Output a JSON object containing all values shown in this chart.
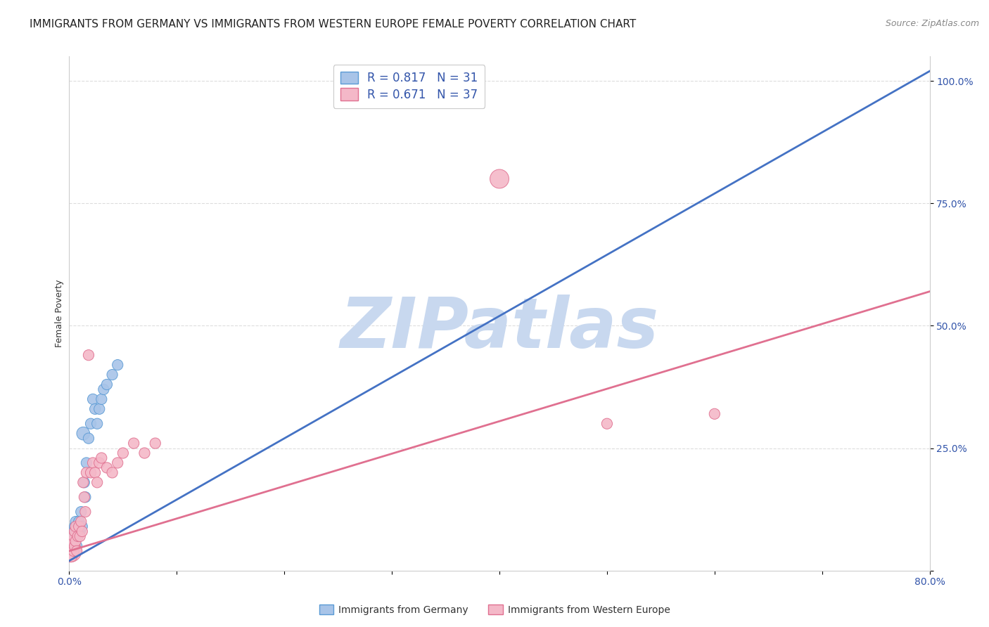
{
  "title": "IMMIGRANTS FROM GERMANY VS IMMIGRANTS FROM WESTERN EUROPE FEMALE POVERTY CORRELATION CHART",
  "source": "Source: ZipAtlas.com",
  "ylabel": "Female Poverty",
  "xlim": [
    0.0,
    0.8
  ],
  "ylim": [
    0.0,
    1.05
  ],
  "x_ticks": [
    0.0,
    0.1,
    0.2,
    0.3,
    0.4,
    0.5,
    0.6,
    0.7,
    0.8
  ],
  "x_tick_labels": [
    "0.0%",
    "",
    "",
    "",
    "",
    "",
    "",
    "",
    "80.0%"
  ],
  "y_ticks": [
    0.0,
    0.25,
    0.5,
    0.75,
    1.0
  ],
  "y_tick_labels": [
    "",
    "25.0%",
    "50.0%",
    "75.0%",
    "100.0%"
  ],
  "watermark": "ZIPatlas",
  "blue_line": {
    "x0": 0.0,
    "y0": 0.02,
    "x1": 0.8,
    "y1": 1.02
  },
  "pink_line": {
    "x0": 0.0,
    "y0": 0.04,
    "x1": 0.8,
    "y1": 0.57
  },
  "series": [
    {
      "name": "Immigrants from Germany",
      "color": "#a8c4e8",
      "edge_color": "#5b9bd5",
      "line_color": "#4472c4",
      "R": 0.817,
      "N": 31,
      "x": [
        0.001,
        0.002,
        0.003,
        0.003,
        0.004,
        0.004,
        0.005,
        0.005,
        0.006,
        0.006,
        0.007,
        0.008,
        0.009,
        0.01,
        0.011,
        0.012,
        0.013,
        0.014,
        0.015,
        0.016,
        0.018,
        0.02,
        0.022,
        0.024,
        0.026,
        0.028,
        0.03,
        0.032,
        0.035,
        0.04,
        0.045
      ],
      "y": [
        0.05,
        0.04,
        0.06,
        0.07,
        0.05,
        0.08,
        0.06,
        0.09,
        0.07,
        0.1,
        0.05,
        0.08,
        0.1,
        0.08,
        0.12,
        0.09,
        0.28,
        0.18,
        0.15,
        0.22,
        0.27,
        0.3,
        0.35,
        0.33,
        0.3,
        0.33,
        0.35,
        0.37,
        0.38,
        0.4,
        0.42
      ],
      "sizes": [
        200,
        100,
        80,
        80,
        80,
        80,
        80,
        80,
        80,
        80,
        80,
        80,
        80,
        80,
        80,
        80,
        120,
        80,
        80,
        80,
        80,
        80,
        80,
        80,
        80,
        80,
        80,
        80,
        80,
        80,
        80
      ]
    },
    {
      "name": "Immigrants from Western Europe",
      "color": "#f4b8c8",
      "edge_color": "#e07090",
      "line_color": "#e07090",
      "R": 0.671,
      "N": 37,
      "x": [
        0.001,
        0.002,
        0.003,
        0.003,
        0.004,
        0.004,
        0.005,
        0.005,
        0.006,
        0.006,
        0.007,
        0.008,
        0.009,
        0.01,
        0.011,
        0.012,
        0.013,
        0.014,
        0.015,
        0.016,
        0.018,
        0.02,
        0.022,
        0.024,
        0.026,
        0.028,
        0.03,
        0.035,
        0.04,
        0.045,
        0.05,
        0.06,
        0.07,
        0.08,
        0.4,
        0.5,
        0.6
      ],
      "y": [
        0.04,
        0.03,
        0.05,
        0.06,
        0.04,
        0.07,
        0.05,
        0.08,
        0.06,
        0.09,
        0.04,
        0.07,
        0.09,
        0.07,
        0.1,
        0.08,
        0.18,
        0.15,
        0.12,
        0.2,
        0.44,
        0.2,
        0.22,
        0.2,
        0.18,
        0.22,
        0.23,
        0.21,
        0.2,
        0.22,
        0.24,
        0.26,
        0.24,
        0.26,
        0.8,
        0.3,
        0.32
      ],
      "sizes": [
        350,
        100,
        80,
        80,
        80,
        80,
        80,
        80,
        80,
        80,
        80,
        80,
        80,
        80,
        80,
        80,
        80,
        80,
        80,
        80,
        80,
        80,
        80,
        80,
        80,
        80,
        80,
        80,
        80,
        80,
        80,
        80,
        80,
        80,
        250,
        80,
        80
      ]
    }
  ],
  "legend_color": "#3355aa",
  "title_fontsize": 11,
  "axis_label_fontsize": 9,
  "tick_fontsize": 10,
  "watermark_color": "#c8d8ef",
  "watermark_fontsize": 72,
  "background_color": "#ffffff",
  "grid_color": "#dddddd"
}
